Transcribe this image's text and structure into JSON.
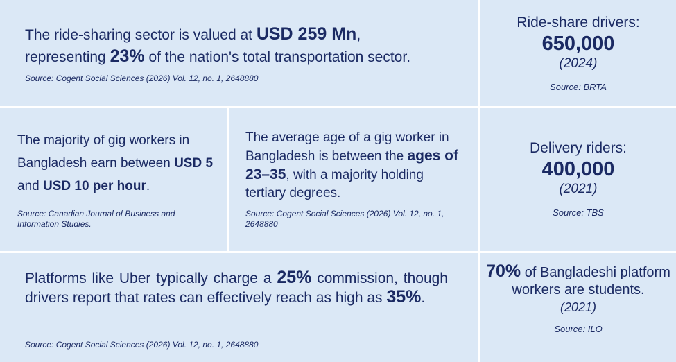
{
  "panel1": {
    "t1": "The ride-sharing sector is valued at ",
    "b1": "USD 259 Mn",
    "t2": ",",
    "t3": "representing ",
    "b2": "23%",
    "t4": " of the nation's total transportation sector.",
    "source": "Source: Cogent Social Sciences (2026) Vol. 12, no. 1, 2648880"
  },
  "panel2": {
    "label": "Ride-share drivers:",
    "value": "650,000",
    "year": "(2024)",
    "source": "Source: BRTA"
  },
  "panel3": {
    "t1": "The majority of gig workers in Bangladesh earn between ",
    "b1": "USD 5",
    "t2": " and ",
    "b2": "USD 10 per hour",
    "t3": ".",
    "source": "Source: Canadian Journal of Business and Information Studies."
  },
  "panel4": {
    "t1": "The average age of a gig worker in Bangladesh is between the ",
    "b1": "ages of 23–35",
    "t2": ", with a majority holding tertiary degrees.",
    "source": "Source: Cogent Social Sciences (2026) Vol. 12, no. 1, 2648880"
  },
  "panel5": {
    "label": "Delivery riders:",
    "value": "400,000",
    "year": "(2021)",
    "source": "Source: TBS"
  },
  "panel6": {
    "t1": "Platforms like Uber typically charge a ",
    "b1": "25%",
    "t2": " commission, though drivers report that rates can effectively reach as high as ",
    "b2": "35%",
    "t3": ".",
    "source": "Source: Cogent Social Sciences (2026) Vol. 12, no. 1, 2648880"
  },
  "panel7": {
    "b1": "70%",
    "t1": " of Bangladeshi platform workers are students.",
    "year": "(2021)",
    "source": "Source: ILO"
  }
}
